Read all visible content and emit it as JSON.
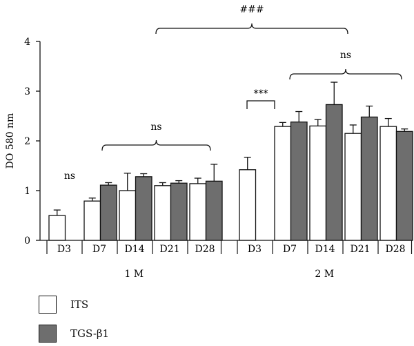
{
  "chart_data": {
    "type": "bar",
    "ylabel": "DO 580 nm",
    "ylim": [
      0,
      4
    ],
    "yticks": [
      0,
      1,
      2,
      3,
      4
    ],
    "groups": [
      {
        "name": "1 M",
        "timepoints": [
          {
            "label": "D3",
            "ITS": 0.5,
            "ITS_err": 0.11,
            "TGS": null,
            "TGS_err": null
          },
          {
            "label": "D7",
            "ITS": 0.79,
            "ITS_err": 0.06,
            "TGS": 1.11,
            "TGS_err": 0.05
          },
          {
            "label": "D14",
            "ITS": 1.0,
            "ITS_err": 0.35,
            "TGS": 1.28,
            "TGS_err": 0.06
          },
          {
            "label": "D21",
            "ITS": 1.1,
            "ITS_err": 0.06,
            "TGS": 1.15,
            "TGS_err": 0.05
          },
          {
            "label": "D28",
            "ITS": 1.14,
            "ITS_err": 0.11,
            "TGS": 1.19,
            "TGS_err": 0.34
          }
        ]
      },
      {
        "name": "2 M",
        "timepoints": [
          {
            "label": "D3",
            "ITS": 1.42,
            "ITS_err": 0.25,
            "TGS": null,
            "TGS_err": null
          },
          {
            "label": "D7",
            "ITS": 2.29,
            "ITS_err": 0.08,
            "TGS": 2.38,
            "TGS_err": 0.21
          },
          {
            "label": "D14",
            "ITS": 2.3,
            "ITS_err": 0.13,
            "TGS": 2.73,
            "TGS_err": 0.45
          },
          {
            "label": "D21",
            "ITS": 2.15,
            "ITS_err": 0.17,
            "TGS": 2.48,
            "TGS_err": 0.22
          },
          {
            "label": "D28",
            "ITS": 2.29,
            "ITS_err": 0.16,
            "TGS": 2.19,
            "TGS_err": 0.05
          }
        ]
      }
    ],
    "series": [
      {
        "name": "ITS",
        "color": "#ffffff"
      },
      {
        "name": "TGS-β1",
        "color": "#6e6e6e"
      }
    ],
    "annotations": [
      {
        "text": "ns",
        "scope": "1M D3"
      },
      {
        "text": "ns",
        "scope": "1M D7–D28 bracket"
      },
      {
        "text": "***",
        "scope": "2M D3 vs D7 ITS bracket"
      },
      {
        "text": "ns",
        "scope": "2M D7–D28 bracket"
      },
      {
        "text": "###",
        "scope": "1M vs 2M bracket"
      }
    ]
  },
  "legend": {
    "its_label": "ITS",
    "tgs_label": "TGS-β1",
    "its_color": "#ffffff",
    "tgs_color": "#6e6e6e"
  }
}
